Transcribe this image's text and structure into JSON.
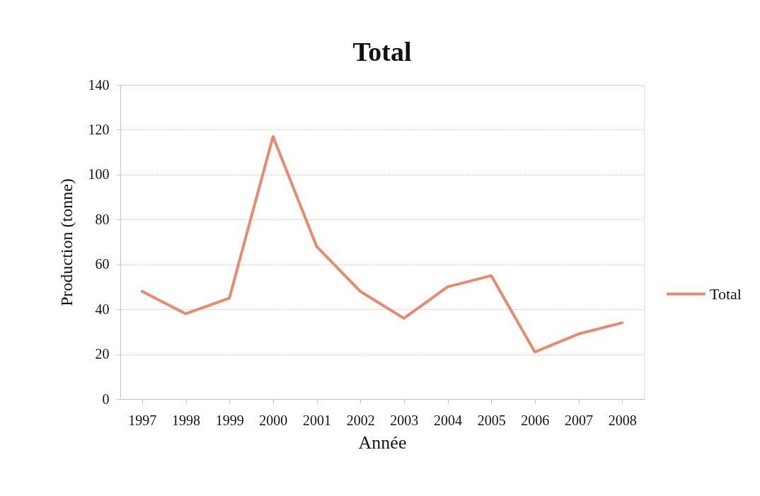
{
  "chart_data": {
    "type": "line",
    "title": "Total",
    "xlabel": "Année",
    "ylabel": "Production (tonne)",
    "categories": [
      "1997",
      "1998",
      "1999",
      "2000",
      "2001",
      "2002",
      "2003",
      "2004",
      "2005",
      "2006",
      "2007",
      "2008"
    ],
    "series": [
      {
        "name": "Total",
        "color": "#e98a6f",
        "values": [
          48,
          38,
          45,
          117,
          68,
          48,
          36,
          50,
          55,
          21,
          29,
          34
        ]
      }
    ],
    "ylim": [
      0,
      140
    ],
    "yticks": [
      0,
      20,
      40,
      60,
      80,
      100,
      120,
      140
    ],
    "grid": "y",
    "legend": "right",
    "marker": "none",
    "line_style": "solid"
  }
}
